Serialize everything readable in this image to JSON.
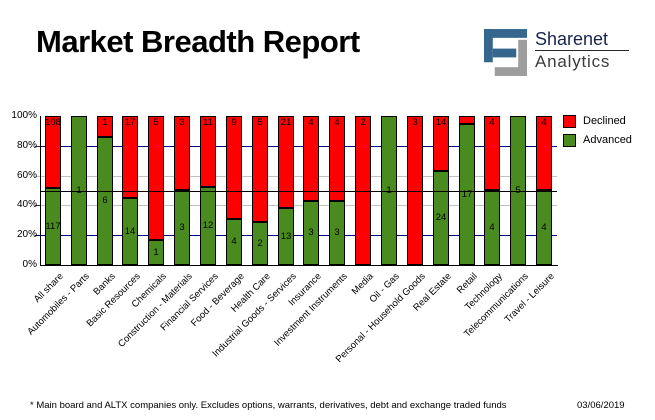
{
  "header": {
    "title": "Market Breadth Report",
    "logo": {
      "name": "Sharenet",
      "division": "Analytics",
      "icon_blue": "#35678e",
      "icon_gray": "#9d9d9d"
    }
  },
  "legend": {
    "items": [
      {
        "label": "Declined",
        "color": "#ff0000"
      },
      {
        "label": "Advanced",
        "color": "#4a8b1f"
      }
    ]
  },
  "footer": {
    "note": "* Main board and ALTX companies only. Excludes options, warrants, derivatives, debt and exchange traded funds",
    "date": "03/06/2019"
  },
  "chart_data": {
    "type": "bar",
    "stacked": true,
    "stack_mode": "percent",
    "title": "Market Breadth Report",
    "xlabel": "",
    "ylabel": "",
    "ylim": [
      0,
      100
    ],
    "ytick_labels": [
      "0%",
      "20%",
      "40%",
      "60%",
      "80%",
      "100%"
    ],
    "legend_position": "top-right",
    "grid": true,
    "gridlines": [
      {
        "value": 20,
        "color": "#000080"
      },
      {
        "value": 40,
        "color": "#c0c0c0"
      },
      {
        "value": 60,
        "color": "#c0c0c0"
      },
      {
        "value": 80,
        "color": "#000080"
      }
    ],
    "reference_line": {
      "value": 50,
      "color": "#000000"
    },
    "categories": [
      "All share",
      "Automobiles - Parts",
      "Banks",
      "Basic Resources",
      "Chemicals",
      "Construction - Materials",
      "Financial Services",
      "Food - Beverage",
      "Health Care",
      "Industrial Goods - Services",
      "Insurance",
      "Investment Instruments",
      "Media",
      "Oil - Gas",
      "Personal - Household Goods",
      "Real Estate",
      "Retail",
      "Technology",
      "Telecommunications",
      "Travel - Leisure"
    ],
    "series": [
      {
        "name": "Declined",
        "color": "#ff0000",
        "values": [
          108,
          0,
          1,
          17,
          5,
          3,
          11,
          9,
          5,
          21,
          4,
          4,
          2,
          0,
          3,
          14,
          1,
          4,
          0,
          4
        ],
        "labels": [
          "108",
          "",
          "1",
          "17",
          "5",
          "3",
          "11",
          "9",
          "5",
          "21",
          "4",
          "4",
          "2",
          "",
          "3",
          "14",
          "",
          "4",
          "",
          "4"
        ]
      },
      {
        "name": "Advanced",
        "color": "#4a8b1f",
        "values": [
          117,
          1,
          6,
          14,
          1,
          3,
          12,
          4,
          2,
          13,
          3,
          3,
          0,
          1,
          0,
          24,
          17,
          4,
          5,
          4
        ],
        "labels": [
          "117",
          "1",
          "6",
          "14",
          "1",
          "3",
          "12",
          "4",
          "2",
          "13",
          "3",
          "3",
          "",
          "1",
          "",
          "24",
          "17",
          "4",
          "5",
          "4"
        ]
      }
    ]
  }
}
